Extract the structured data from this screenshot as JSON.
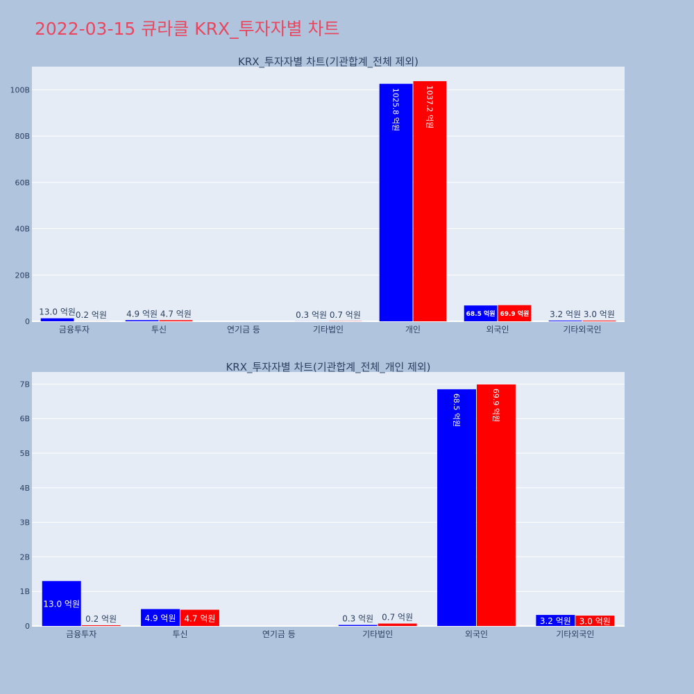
{
  "title": "2022-03-15 큐라클 KRX_투자자별 차트",
  "colors": {
    "buy": "#0000ff",
    "sell": "#ff0000",
    "background": "#b0c4de",
    "plot_bg": "#e5ecf6",
    "title": "#e8475f"
  },
  "chart_data": [
    {
      "type": "bar",
      "title": "KRX_투자자별 차트(기관합계_전체 제외)",
      "categories": [
        "금융투자",
        "투신",
        "연기금 등",
        "기타법인",
        "개인",
        "외국인",
        "기타외국인"
      ],
      "series": [
        {
          "color": "#0000ff",
          "values": [
            1.3,
            0.49,
            0,
            0.03,
            102.58,
            6.85,
            0.32
          ],
          "labels": [
            "13.0 억원",
            "4.9 억원",
            "",
            "0.3 억원",
            "1025.8 억원",
            "68.5 억원",
            "3.2 억원"
          ]
        },
        {
          "color": "#ff0000",
          "values": [
            0.02,
            0.47,
            0,
            0.07,
            103.72,
            6.99,
            0.3
          ],
          "labels": [
            "0.2 억원",
            "4.7 억원",
            "",
            "0.7 억원",
            "1037.2 억원",
            "69.9 억원",
            "3.0 억원"
          ]
        }
      ],
      "yticks": [
        0,
        20,
        40,
        60,
        80,
        100
      ],
      "ytick_labels": [
        "0",
        "20B",
        "40B",
        "60B",
        "80B",
        "100B"
      ],
      "ylim": [
        0,
        110
      ],
      "grid": true
    },
    {
      "type": "bar",
      "title": "KRX_투자자별 차트(기관합계_전체_개인 제외)",
      "categories": [
        "금융투자",
        "투신",
        "연기금 등",
        "기타법인",
        "외국인",
        "기타외국인"
      ],
      "series": [
        {
          "color": "#0000ff",
          "values": [
            1.3,
            0.49,
            0,
            0.03,
            6.85,
            0.32
          ],
          "labels": [
            "13.0 억원",
            "4.9 억원",
            "",
            "0.3 억원",
            "68.5 억원",
            "3.2 억원"
          ]
        },
        {
          "color": "#ff0000",
          "values": [
            0.02,
            0.47,
            0,
            0.07,
            6.99,
            0.3
          ],
          "labels": [
            "0.2 억원",
            "4.7 억원",
            "",
            "0.7 억원",
            "69.9 억원",
            "3.0 억원"
          ]
        }
      ],
      "yticks": [
        0,
        1,
        2,
        3,
        4,
        5,
        6,
        7
      ],
      "ytick_labels": [
        "0",
        "1B",
        "2B",
        "3B",
        "4B",
        "5B",
        "6B",
        "7B"
      ],
      "ylim": [
        0,
        7.35
      ],
      "grid": true
    }
  ]
}
